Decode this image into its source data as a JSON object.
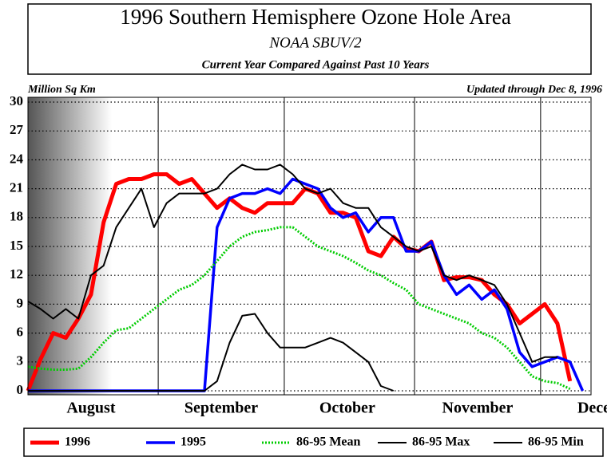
{
  "chart_data": {
    "type": "line",
    "title": "1996 Southern Hemisphere Ozone Hole Area",
    "subtitle": "NOAA SBUV/2",
    "subtitle2": "Current Year Compared Against Past 10 Years",
    "y_label": "Million Sq Km",
    "annotation": "Updated through Dec 8, 1996",
    "x": [
      0,
      3,
      6,
      9,
      12,
      15,
      18,
      21,
      24,
      27,
      30,
      33,
      36,
      39,
      42,
      45,
      48,
      51,
      54,
      57,
      60,
      63,
      66,
      69,
      72,
      75,
      78,
      81,
      84,
      87,
      90,
      93,
      96,
      99,
      102,
      105,
      108,
      111,
      114,
      117,
      120,
      123,
      126,
      129,
      132
    ],
    "xlim": [
      0,
      134
    ],
    "xticks": [
      {
        "value": 15,
        "label": "August"
      },
      {
        "value": 46,
        "label": "September"
      },
      {
        "value": 76,
        "label": "October"
      },
      {
        "value": 107,
        "label": "November"
      },
      {
        "value": 139,
        "label": "December"
      }
    ],
    "xgrid": [
      31,
      61,
      92,
      122
    ],
    "ylim": [
      0,
      30
    ],
    "yticks": [
      0,
      3,
      6,
      9,
      12,
      15,
      18,
      21,
      24,
      27,
      30
    ],
    "grid": true,
    "series": [
      {
        "name": "1996",
        "color": "#ff0000",
        "values": [
          0,
          3.3,
          6,
          5.5,
          7.5,
          10,
          17.5,
          21.5,
          22,
          22,
          22.5,
          22.5,
          21.5,
          22,
          20.5,
          19,
          20,
          19,
          18.5,
          19.5,
          19.5,
          19.5,
          21,
          20.5,
          18.5,
          18.5,
          18,
          14.5,
          14,
          16,
          14.8,
          14.5,
          15.5,
          11.5,
          11.8,
          11.8,
          11.5,
          10,
          9,
          7,
          8,
          9,
          7,
          1,
          null
        ]
      },
      {
        "name": "1995",
        "color": "#0000ff",
        "values": [
          0,
          0,
          0,
          0,
          0,
          0,
          0,
          0,
          0,
          0,
          0,
          0,
          0,
          0,
          0,
          17,
          20,
          20.5,
          20.5,
          21,
          20.5,
          22,
          21.5,
          21,
          19,
          18,
          18.5,
          16.5,
          18,
          18,
          14.5,
          14.5,
          15.5,
          12,
          10,
          11,
          9.5,
          10.5,
          8.5,
          4,
          2.5,
          3,
          3.5,
          3,
          0
        ]
      },
      {
        "name": "86-95 Mean",
        "color": "#00cc00",
        "dotted": true,
        "values": [
          2.5,
          2.3,
          2.2,
          2.2,
          2.3,
          3.5,
          5,
          6.3,
          6.5,
          7.5,
          8.5,
          9.5,
          10.5,
          11,
          12,
          13.5,
          15,
          16,
          16.5,
          16.7,
          17,
          17,
          16,
          15,
          14.5,
          14,
          13.3,
          12.5,
          12,
          11.2,
          10.5,
          9,
          8.5,
          8,
          7.5,
          7,
          6,
          5.5,
          4.5,
          3,
          1.5,
          1,
          0.8,
          0.2,
          null
        ]
      },
      {
        "name": "86-95 Max",
        "color": "#000000",
        "values": [
          9.3,
          8.5,
          7.5,
          8.5,
          7.5,
          12,
          13,
          17,
          19,
          21,
          17,
          19.5,
          20.5,
          20.5,
          20.5,
          21,
          22.5,
          23.5,
          23,
          23,
          23.5,
          22.5,
          21,
          20.5,
          21,
          19.5,
          19,
          19,
          17,
          16,
          15,
          14.5,
          15,
          12,
          11.5,
          12,
          11.5,
          11,
          9,
          6,
          3,
          3.5,
          3.5,
          null,
          null
        ]
      },
      {
        "name": "86-95 Min",
        "color": "#000000",
        "values": [
          0,
          0,
          0,
          0,
          0,
          0,
          0,
          0,
          0,
          0,
          0,
          0,
          0,
          0,
          0,
          1,
          5,
          7.8,
          8,
          6,
          4.5,
          4.5,
          4.5,
          5,
          5.5,
          5,
          4,
          3,
          0.5,
          0,
          null,
          null,
          null,
          null,
          null,
          null,
          null,
          null,
          null,
          null,
          null,
          null,
          null,
          null,
          null
        ]
      }
    ]
  }
}
